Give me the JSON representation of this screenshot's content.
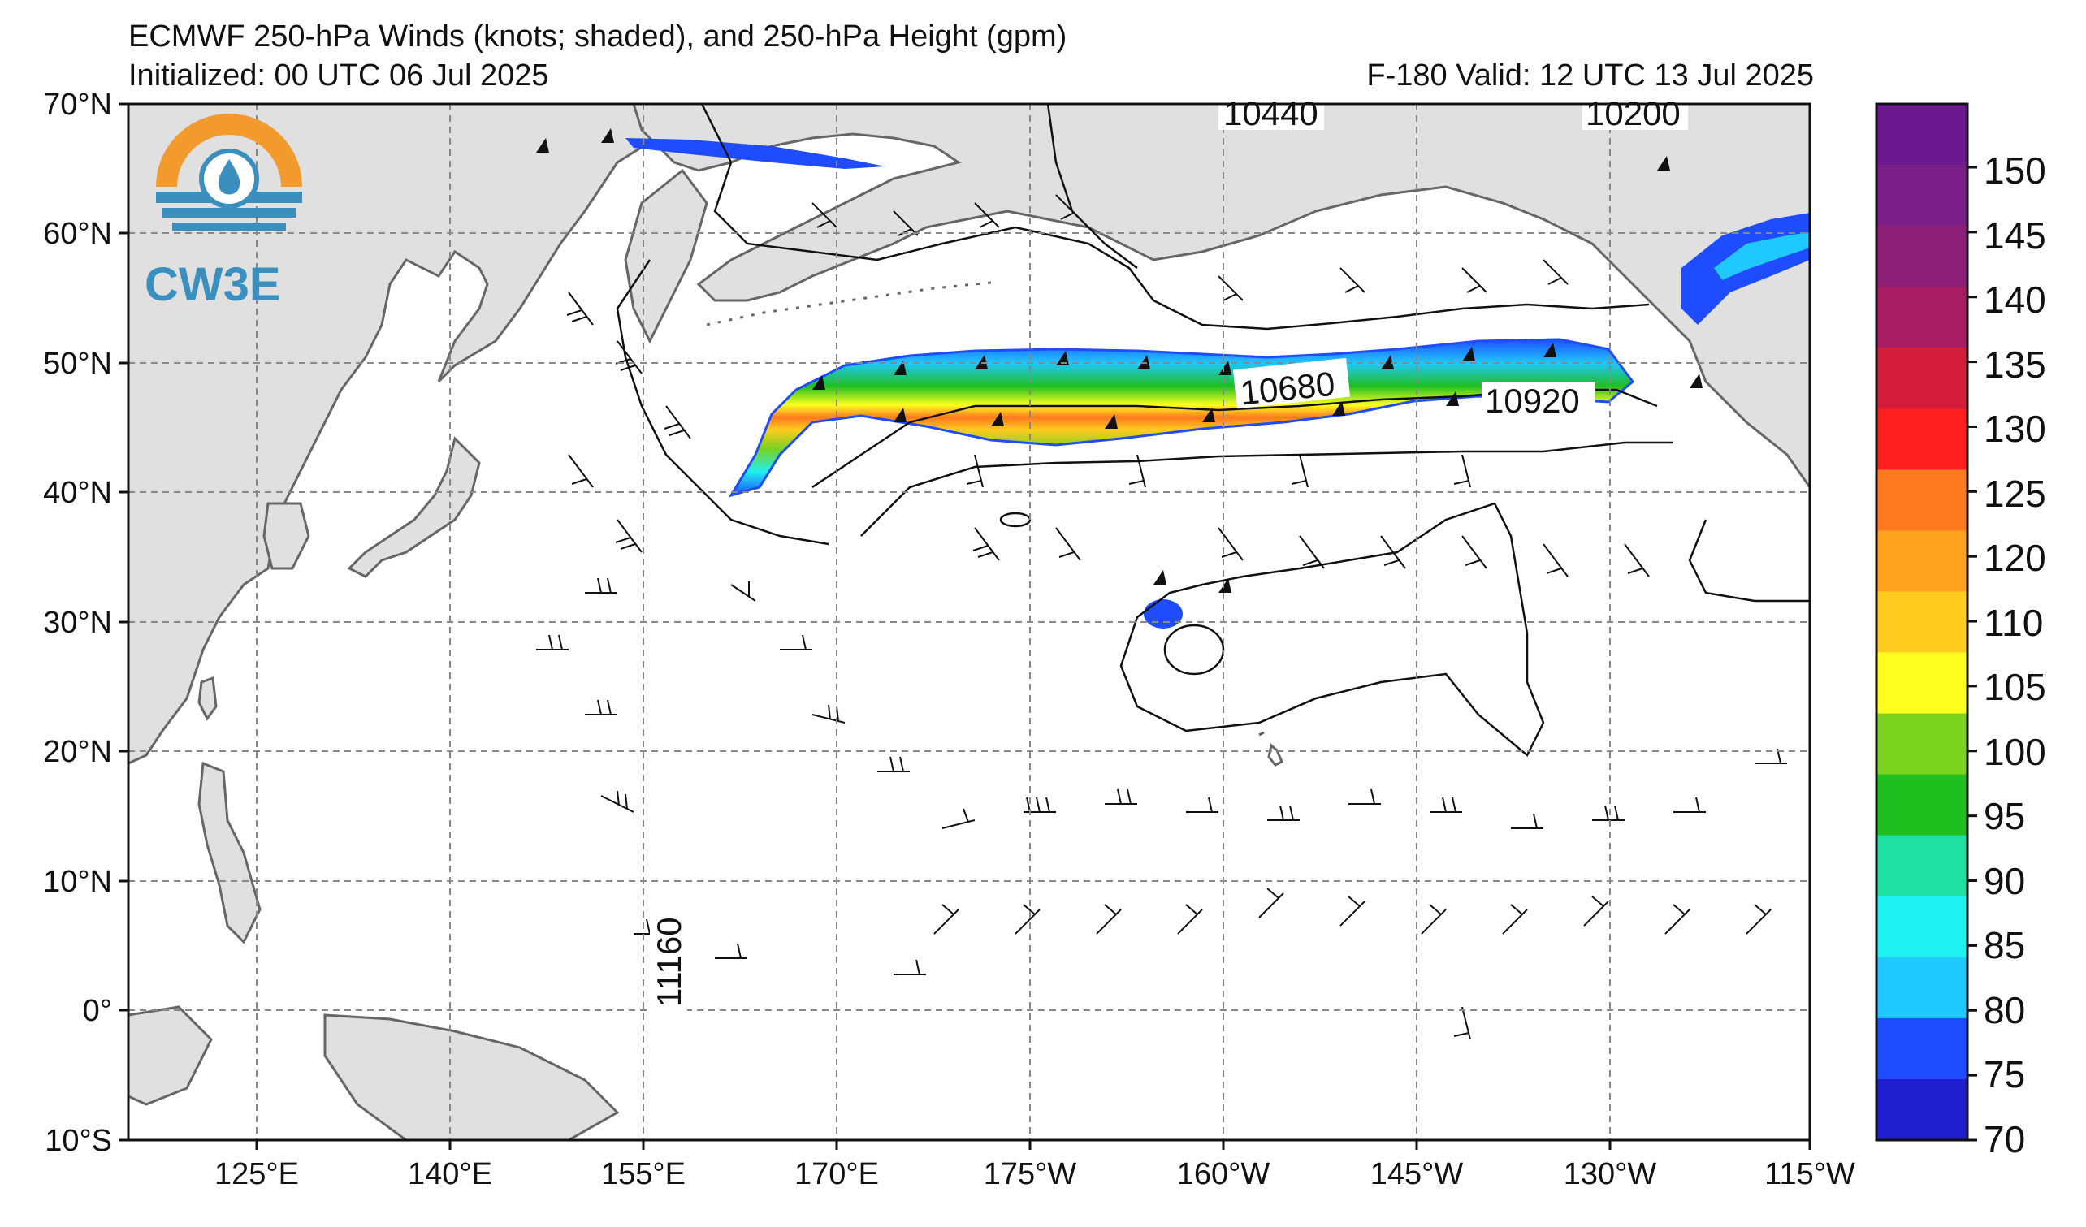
{
  "title": {
    "line1": "ECMWF 250-hPa Winds (knots; shaded), and 250-hPa Height (gpm)",
    "init": "Initialized: 00 UTC 06 Jul 2025",
    "valid": "F-180  Valid: 12 UTC 13 Jul 2025"
  },
  "logo": {
    "text": "CW3E",
    "colors": {
      "orange": "#f29a2e",
      "blue": "#3b8fbf"
    }
  },
  "map": {
    "lon_ticks": [
      "125°E",
      "140°E",
      "155°E",
      "170°E",
      "175°W",
      "160°W",
      "145°W",
      "130°W",
      "115°W"
    ],
    "lat_ticks": [
      "70°N",
      "60°N",
      "50°N",
      "40°N",
      "30°N",
      "20°N",
      "10°N",
      "0°",
      "10°S"
    ],
    "land_color": "#e0e0e0",
    "coast_color": "#666666",
    "grid": "dashed"
  },
  "contour_labels": [
    "10440",
    "10200",
    "10680",
    "10920",
    "11160"
  ],
  "colorbar": {
    "ticks": [
      "150",
      "145",
      "140",
      "135",
      "130",
      "125",
      "120",
      "110",
      "105",
      "100",
      "95",
      "90",
      "85",
      "80",
      "75",
      "70"
    ],
    "colors": [
      "#6a1a8e",
      "#7a1f88",
      "#8e1f78",
      "#a81d63",
      "#d41d3a",
      "#ff1f1f",
      "#ff7a1f",
      "#ffa31f",
      "#ffcc1f",
      "#ffff1f",
      "#7ad21f",
      "#1fbf1f",
      "#1fe0a0",
      "#1ff0f0",
      "#1fc8ff",
      "#1f4cff",
      "#1f1fd0"
    ]
  }
}
